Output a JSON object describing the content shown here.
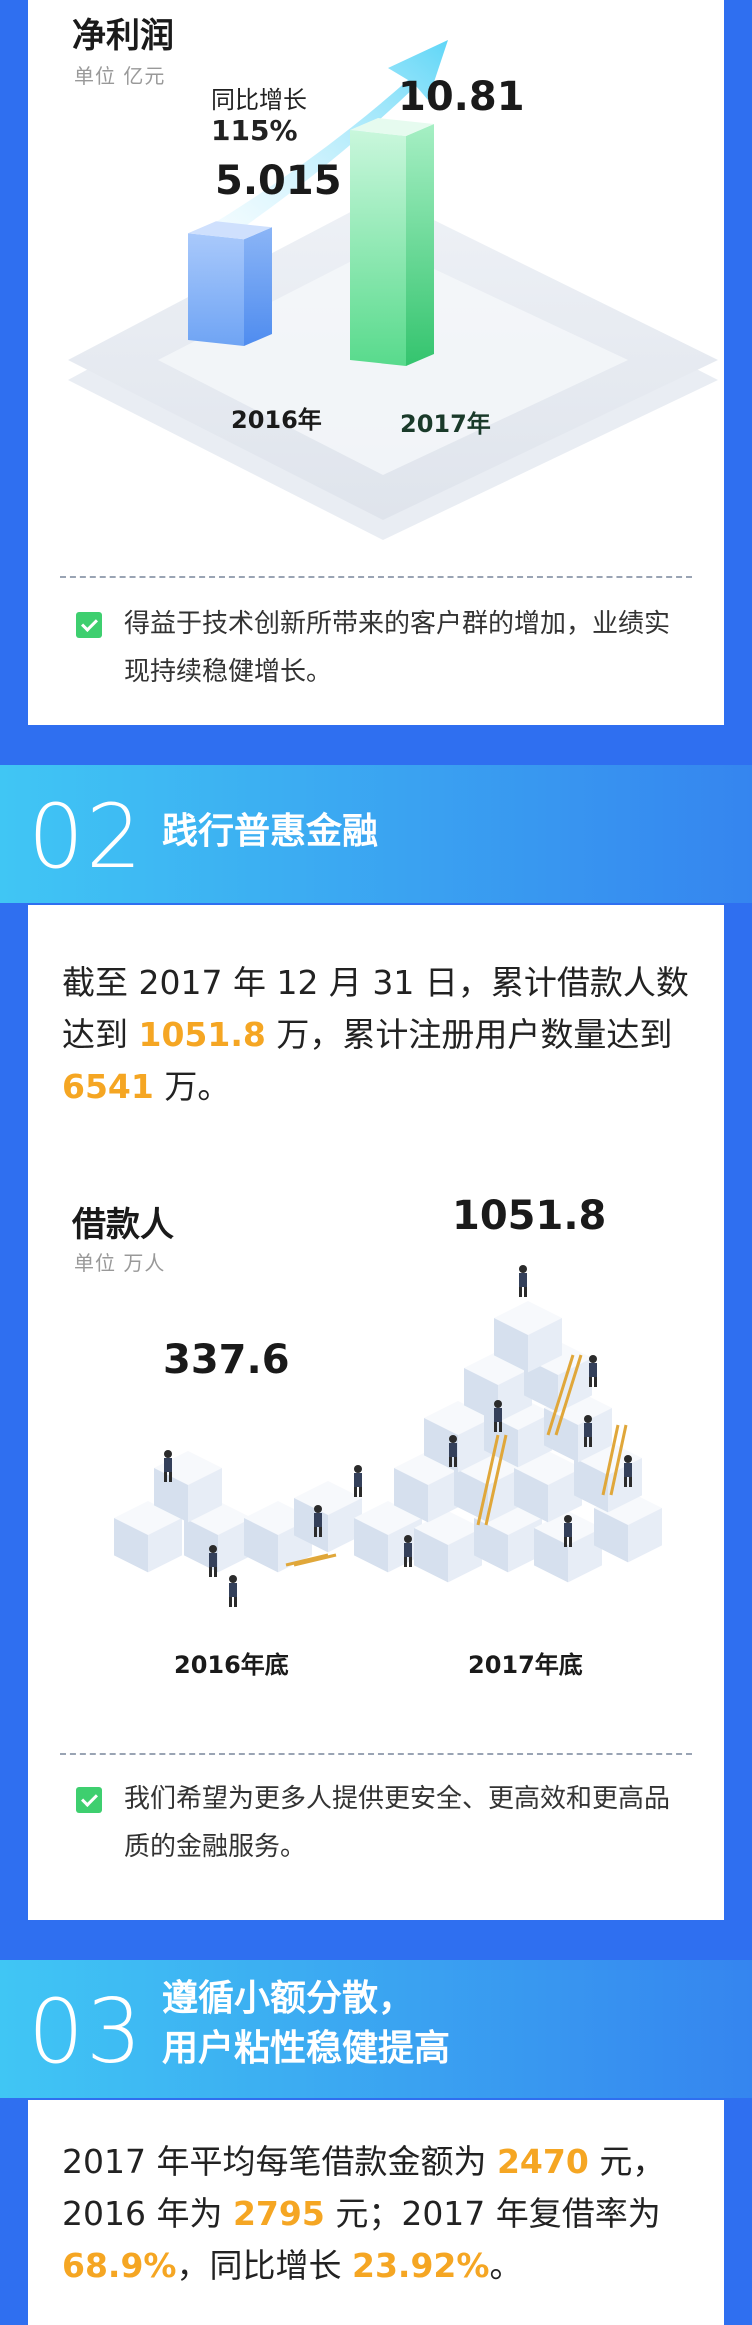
{
  "section1": {
    "chart_data": {
      "type": "bar",
      "title": "净利润",
      "unit": "单位 亿元",
      "categories": [
        "2016年",
        "2017年"
      ],
      "values": [
        5.015,
        10.81
      ],
      "value_labels": [
        "5.015",
        "10.81"
      ],
      "growth_label": "同比增长",
      "growth_value": "115%"
    },
    "note": "得益于技术创新所带来的客户群的增加，业绩实现持续稳健增长。"
  },
  "section2": {
    "number": "02",
    "title": "践行普惠金融",
    "paragraph": {
      "p1": "截至 2017 年 12 月 31 日，累计借款人数达到 ",
      "v1": "1051.8",
      "p2": " 万，累计注册用户数量达到 ",
      "v2": "6541",
      "p3": " 万。"
    },
    "chart_data": {
      "type": "bar",
      "title": "借款人",
      "unit": "单位 万人",
      "categories": [
        "2016年底",
        "2017年底"
      ],
      "values": [
        337.6,
        1051.8
      ],
      "value_labels": [
        "337.6",
        "1051.8"
      ]
    },
    "note": "我们希望为更多人提供更安全、更高效和更高品质的金融服务。"
  },
  "section3": {
    "number": "03",
    "title_line1": "遵循小额分散，",
    "title_line2": "用户粘性稳健提高",
    "paragraph": {
      "p1": "2017 年平均每笔借款金额为 ",
      "v1": "2470",
      "p2": " 元，2016 年为 ",
      "v2": "2795",
      "p3": " 元；2017 年复借率为 ",
      "v3": "68.9%",
      "p4": "，同比增长 ",
      "v4": "23.92%",
      "p5": "。"
    }
  }
}
